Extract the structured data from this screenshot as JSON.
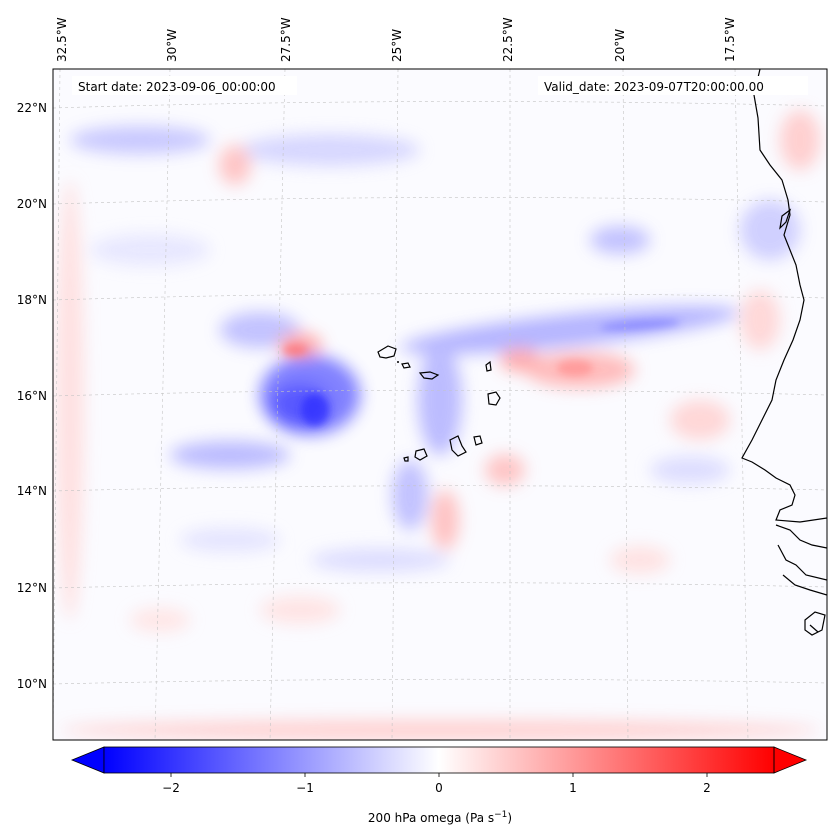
{
  "map": {
    "start_label": "Start date: 2023-09-06_00:00:00",
    "valid_label": "Valid_date: 2023-09-07T20:00:00.00",
    "lon_labels": [
      "32.5°W",
      "30°W",
      "27.5°W",
      "25°W",
      "22.5°W",
      "20°W",
      "17.5°W"
    ],
    "lat_labels": [
      "22°N",
      "20°N",
      "18°N",
      "16°N",
      "14°N",
      "12°N",
      "10°N"
    ],
    "features": [
      "Cabo Verde islands",
      "West African coastline"
    ]
  },
  "colorbar": {
    "ticks": [
      "−2",
      "−1",
      "0",
      "1",
      "2"
    ],
    "label_main": "200 hPa omega (Pa s",
    "label_exp": "−1",
    "label_close": ")",
    "colors": {
      "negative": "#0000ff",
      "zero": "#ffffff",
      "positive": "#ff0000"
    }
  }
}
